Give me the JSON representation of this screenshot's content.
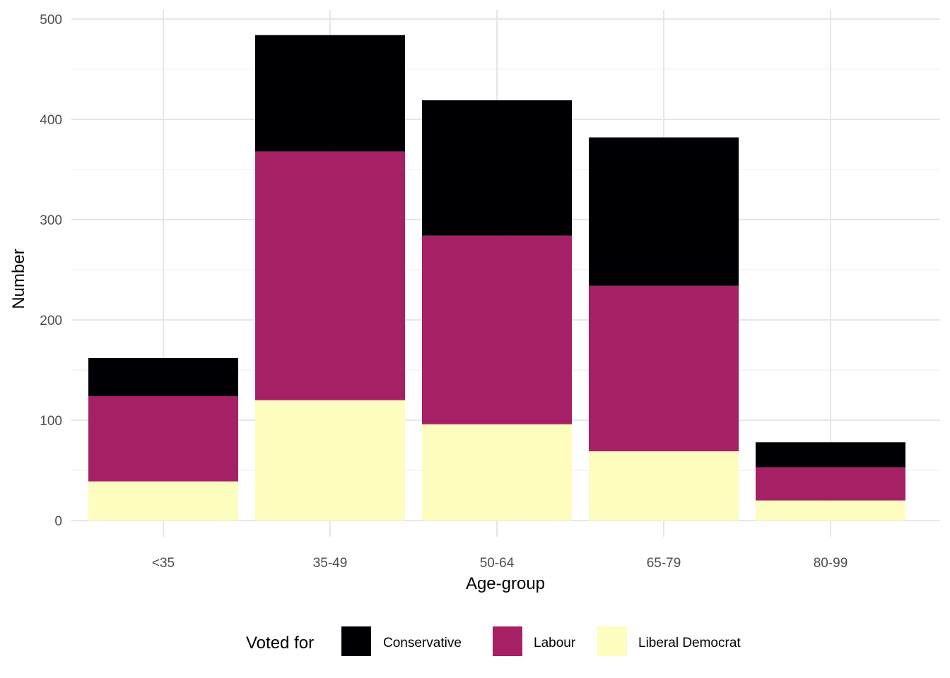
{
  "chart_data": {
    "type": "bar",
    "stacked": true,
    "categories": [
      "<35",
      "35-49",
      "50-64",
      "65-79",
      "80-99"
    ],
    "series": [
      {
        "name": "Liberal Democrat",
        "values": [
          39,
          120,
          96,
          69,
          20
        ],
        "color": "#FCFDBF"
      },
      {
        "name": "Labour",
        "values": [
          85,
          248,
          188,
          165,
          33
        ],
        "color": "#A62066"
      },
      {
        "name": "Conservative",
        "values": [
          38,
          116,
          135,
          148,
          25
        ],
        "color": "#000004"
      }
    ],
    "title": "",
    "xlabel": "Age-group",
    "ylabel": "Number",
    "ylim": [
      0,
      500
    ],
    "yticks": [
      0,
      100,
      200,
      300,
      400,
      500
    ],
    "grid": true,
    "legend": {
      "title": "Voted for",
      "placement": "bottom",
      "entries": [
        "Conservative",
        "Labour",
        "Liberal Democrat"
      ]
    }
  }
}
